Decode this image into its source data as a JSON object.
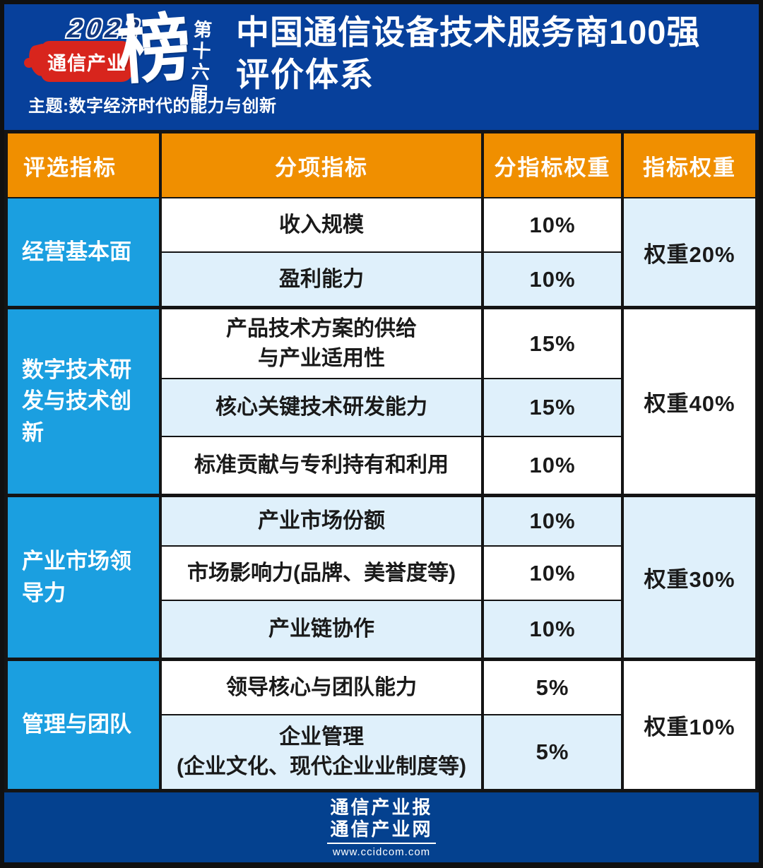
{
  "colors": {
    "header_blue": "#07409B",
    "footer_blue": "#04418F",
    "table_header_orange": "#F08F00",
    "category_cyan": "#1B9FE0",
    "row_light_blue": "#DFF0FB",
    "ribbon_red": "#D8251D",
    "border_black": "#141414"
  },
  "header": {
    "year": "2022",
    "brand": "通信产业",
    "list_char": "榜",
    "edition": "第十六届",
    "theme": "主题:数字经济时代的能力与创新",
    "title_line1": "中国通信设备技术服务商100强",
    "title_line2": "评价体系"
  },
  "table": {
    "columns": [
      "评选指标",
      "分项指标",
      "分指标权重",
      "指标权重"
    ],
    "groups": [
      {
        "category": "经营基本面",
        "weight": "权重20%",
        "rows": [
          {
            "label": "收入规模",
            "value": "10%"
          },
          {
            "label": "盈利能力",
            "value": "10%"
          }
        ]
      },
      {
        "category": "数字技术研发与技术创新",
        "weight": "权重40%",
        "rows": [
          {
            "label": "产品技术方案的供给\n与产业适用性",
            "value": "15%"
          },
          {
            "label": "核心关键技术研发能力",
            "value": "15%"
          },
          {
            "label": "标准贡献与专利持有和利用",
            "value": "10%"
          }
        ]
      },
      {
        "category": "产业市场领导力",
        "weight": "权重30%",
        "rows": [
          {
            "label": "产业市场份额",
            "value": "10%"
          },
          {
            "label": "市场影响力(品牌、美誉度等)",
            "value": "10%"
          },
          {
            "label": "产业链协作",
            "value": "10%"
          }
        ]
      },
      {
        "category": "管理与团队",
        "weight": "权重10%",
        "rows": [
          {
            "label": "领导核心与团队能力",
            "value": "5%"
          },
          {
            "label": "企业管理\n(企业文化、现代企业业制度等)",
            "value": "5%"
          }
        ]
      }
    ]
  },
  "footer": {
    "line1": "通信产业报",
    "line2": "通信产业网",
    "url": "www.ccidcom.com"
  }
}
